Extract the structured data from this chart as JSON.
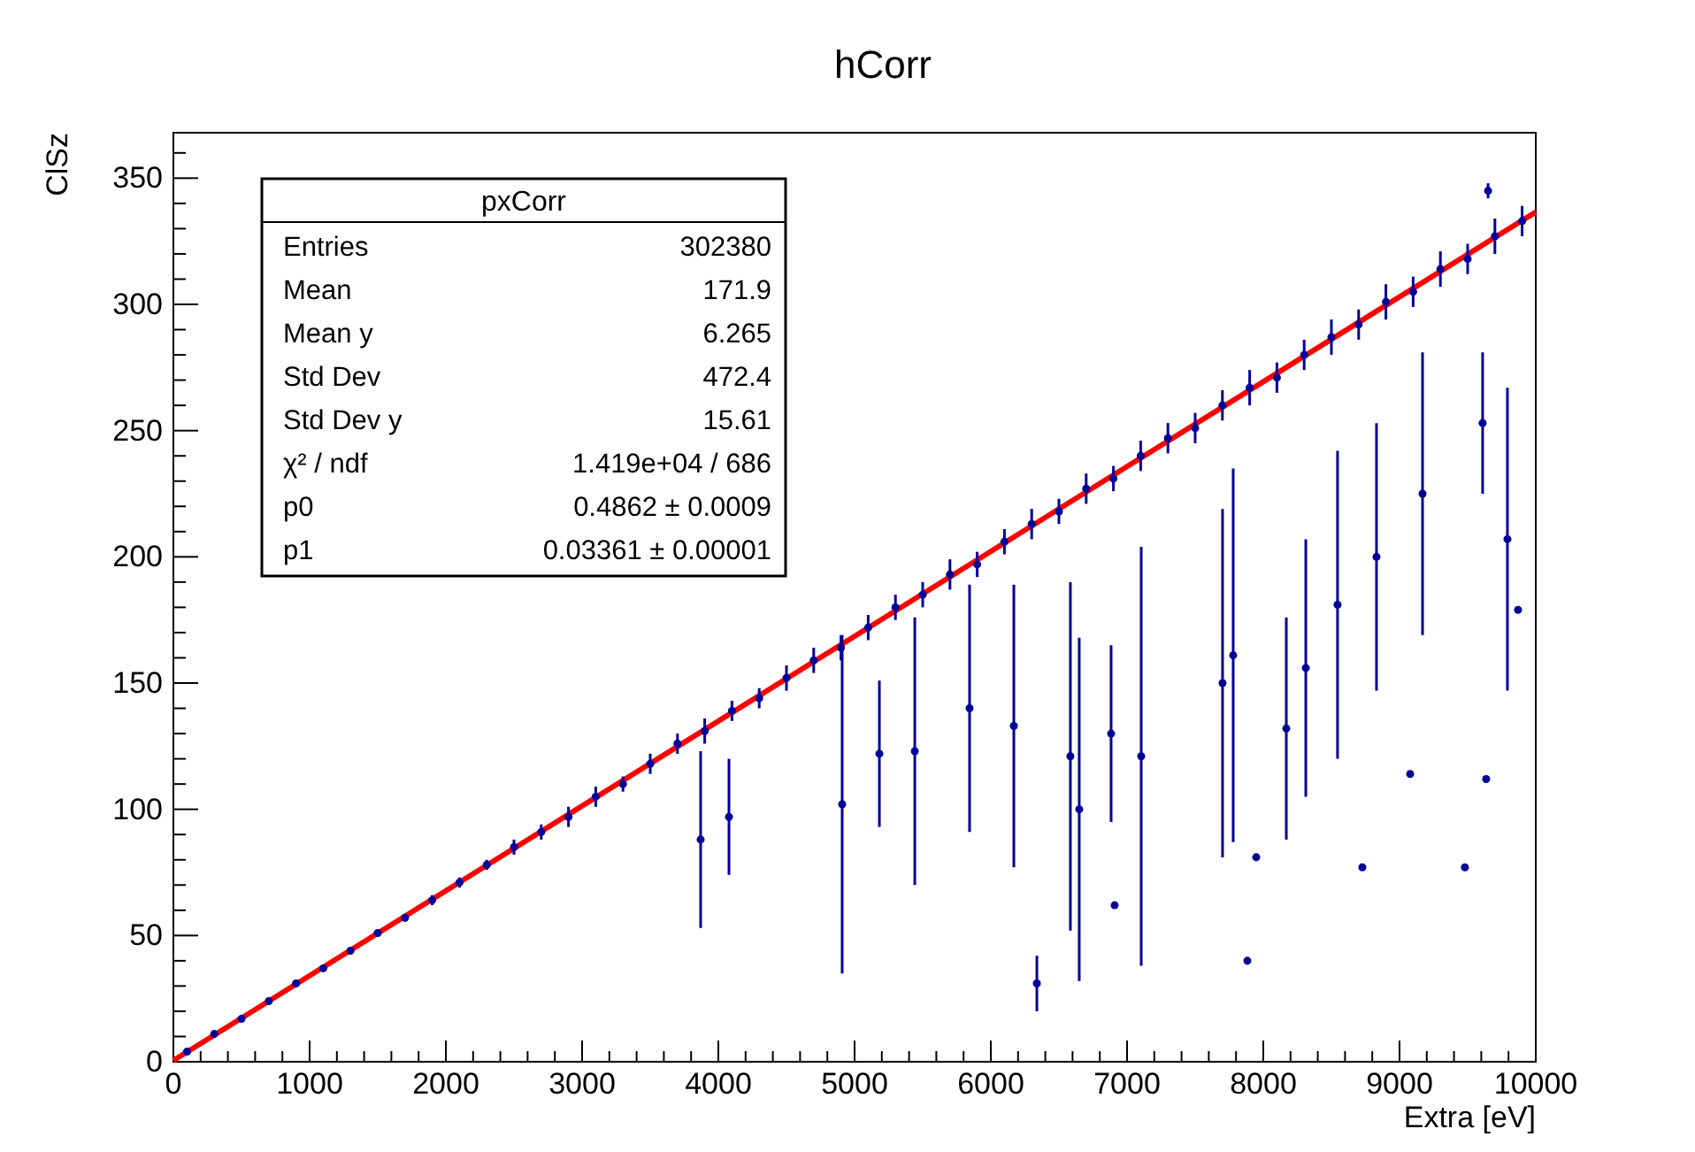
{
  "chart_data": {
    "type": "scatter",
    "title": "hCorr",
    "xlabel": "Extra [eV]",
    "ylabel": "ClSz",
    "xlim": [
      0,
      10000
    ],
    "ylim": [
      0,
      368
    ],
    "xticks": [
      0,
      1000,
      2000,
      3000,
      4000,
      5000,
      6000,
      7000,
      8000,
      9000,
      10000
    ],
    "yticks": [
      0,
      50,
      100,
      150,
      200,
      250,
      300,
      350
    ],
    "grid": false,
    "annotations": [
      "pxCorr",
      "Entries",
      "302380",
      "Mean",
      "171.9",
      "Mean y",
      "6.265",
      "Std Dev",
      "472.4",
      "Std Dev y",
      "15.61",
      "χ² / ndf",
      "1.419e+04 / 686",
      "p0",
      "0.4862 ± 0.0009",
      "p1",
      "0.03361 ± 0.00001"
    ],
    "series": [
      {
        "color": "#000099",
        "marker": "circle",
        "x": [
          100,
          300,
          500,
          700,
          900,
          1100,
          1300,
          1500,
          1700,
          1900,
          2100,
          2300,
          2500,
          2700,
          2900,
          3100,
          3300,
          3500,
          3700,
          3900,
          4100,
          4300,
          4500,
          4700,
          4900,
          5100,
          5300,
          5500,
          5700,
          5900,
          6100,
          6300,
          6500,
          6700,
          6900,
          7100,
          7300,
          7500,
          7700,
          7900,
          8100,
          8300,
          8500,
          8700,
          8900,
          9100,
          9300,
          9500,
          9700,
          9900,
          3870,
          4078,
          4909,
          5182,
          5442,
          5844,
          6169,
          6338,
          6584,
          6649,
          7104,
          6883,
          7701,
          7779,
          8169,
          8312,
          8545,
          8831,
          9169,
          9610,
          9792,
          9650,
          9078,
          9636,
          9480,
          8727,
          9870,
          7948,
          7883,
          6909
        ],
        "values": [
          4,
          11,
          17,
          24,
          31,
          37,
          44,
          51,
          57,
          64,
          71,
          78,
          85,
          91,
          97,
          105,
          110,
          118,
          126,
          131,
          139,
          144,
          152,
          159,
          164,
          172,
          180,
          185,
          193,
          197,
          206,
          213,
          218,
          227,
          231,
          240,
          247,
          251,
          260,
          267,
          271,
          280,
          287,
          292,
          301,
          305,
          314,
          318,
          327,
          333,
          88,
          97,
          102,
          122,
          123,
          140,
          133,
          31,
          121,
          100,
          121,
          130,
          150,
          161,
          132,
          156,
          181,
          200,
          225,
          253,
          207,
          345,
          114,
          112,
          77,
          77,
          179,
          81,
          40,
          62
        ],
        "errors": [
          1,
          1,
          1,
          1,
          1,
          1,
          1,
          1,
          1,
          2,
          2,
          2,
          3,
          3,
          4,
          4,
          3,
          4,
          4,
          5,
          4,
          4,
          5,
          5,
          5,
          5,
          5,
          5,
          6,
          5,
          5,
          6,
          5,
          6,
          5,
          6,
          6,
          6,
          6,
          7,
          6,
          6,
          7,
          6,
          7,
          6,
          7,
          6,
          7,
          6,
          35,
          23,
          67,
          29,
          53,
          49,
          56,
          11,
          69,
          68,
          83,
          35,
          69,
          74,
          44,
          51,
          61,
          53,
          56,
          28,
          60,
          3,
          null,
          null,
          null,
          null,
          null,
          null,
          null,
          null
        ]
      },
      {
        "type": "line",
        "color": "#ff0000",
        "marker": "none",
        "x": [
          0,
          10000
        ],
        "values": [
          0.5,
          336.6
        ]
      }
    ]
  }
}
